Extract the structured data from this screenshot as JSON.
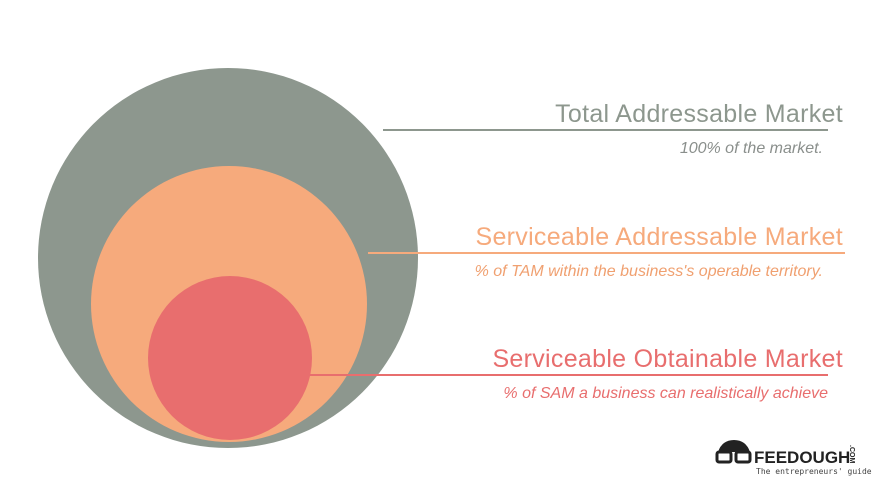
{
  "items": [
    {
      "title": "Total Addressable Market",
      "description": "100% of the market."
    },
    {
      "title": "Serviceable Addressable Market",
      "description": "% of TAM within the business's operable territory."
    },
    {
      "title": "Serviceable Obtainable Market",
      "description": "% of SAM a business can realistically achieve"
    }
  ],
  "logo": {
    "name": "FEEDOUGH",
    "domain": ".COM",
    "tagline": "The entrepreneurs' guide"
  }
}
